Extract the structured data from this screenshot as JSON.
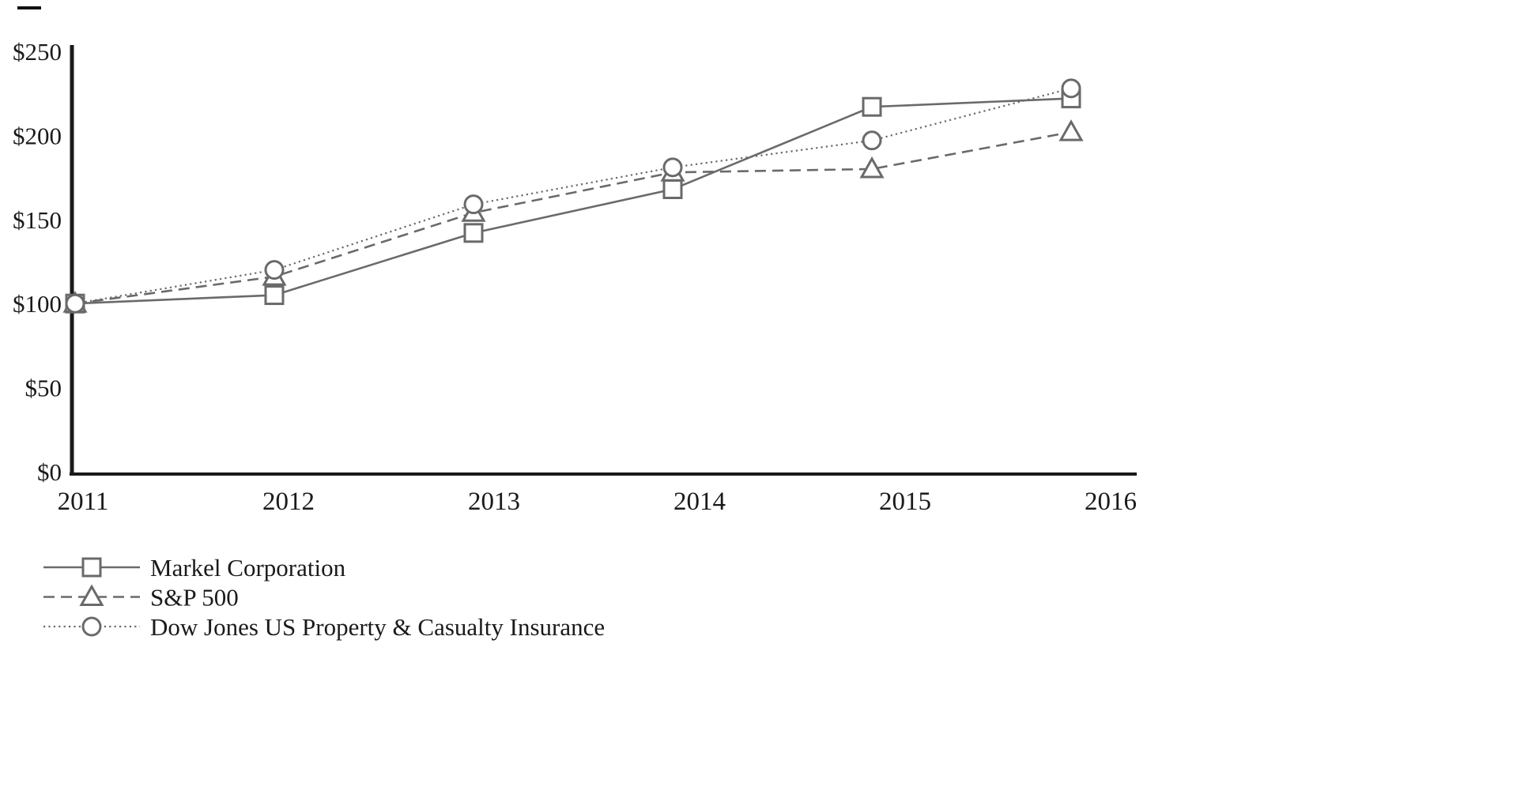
{
  "page": {
    "background": "#ffffff"
  },
  "chart_data": {
    "type": "line",
    "title": "",
    "xlabel": "",
    "ylabel": "",
    "x": [
      2011,
      2012,
      2013,
      2014,
      2015,
      2016
    ],
    "x_tick_labels": [
      "2011",
      "2012",
      "2013",
      "2014",
      "2015",
      "2016"
    ],
    "y_ticks": [
      0,
      50,
      100,
      150,
      200,
      250
    ],
    "y_tick_labels": [
      "$0",
      "$50",
      "$100",
      "$150",
      "$200",
      "$250"
    ],
    "ylim": [
      0,
      250
    ],
    "grid": false,
    "legend_position": "bottom-left",
    "series": [
      {
        "name": "Markel Corporation",
        "marker": "square",
        "line_style": "solid",
        "values": [
          100,
          105,
          142,
          168,
          217,
          222
        ]
      },
      {
        "name": "S&P 500",
        "marker": "triangle",
        "line_style": "dashed",
        "values": [
          100,
          116,
          154,
          178,
          180,
          202
        ]
      },
      {
        "name": "Dow Jones US Property & Casualty Insurance",
        "marker": "circle",
        "line_style": "dotted",
        "values": [
          100,
          120,
          159,
          181,
          197,
          228
        ]
      }
    ],
    "colors": {
      "line": "#6a6a6a",
      "marker_stroke": "#6a6a6a",
      "marker_fill": "#ffffff",
      "axis": "#1a1a1a",
      "text": "#1a1a1a"
    }
  }
}
